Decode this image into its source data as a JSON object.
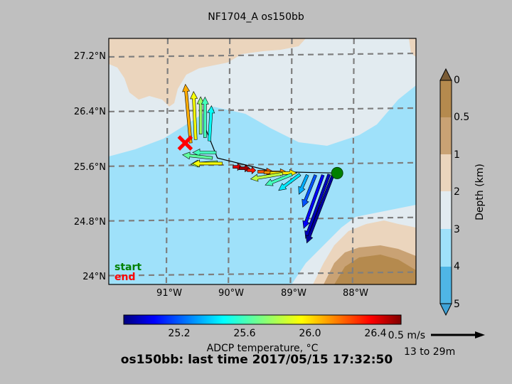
{
  "title": "NF1704_A os150bb",
  "lat_labels": [
    "27.2°N",
    "26.4°N",
    "25.6°N",
    "24.8°N",
    "24°N"
  ],
  "lon_labels": [
    "91°W",
    "90°W",
    "89°W",
    "88°W"
  ],
  "map_extent": {
    "lon": [
      -91.95,
      -87.0
    ],
    "lat": [
      23.85,
      27.45
    ]
  },
  "grid_lon": [
    -91,
    -90,
    -89,
    -88
  ],
  "grid_lat": [
    27.2,
    26.4,
    25.6,
    24.8,
    24.0
  ],
  "legend": {
    "start": "start",
    "end": "end",
    "start_color": "#008000",
    "end_color": "#ff0000"
  },
  "depth_colorbar": {
    "label": "Depth (km)",
    "ticks": [
      "0",
      "0.5",
      "1",
      "2",
      "3",
      "4",
      "5"
    ],
    "colors": [
      "#b58a4e",
      "#c9a274",
      "#ebd5bd",
      "#e2ebf0",
      "#9fe1fa",
      "#4fb6e6"
    ]
  },
  "temp_colorbar": {
    "label": "ADCP temperature, °C",
    "ticks": [
      "25.2",
      "25.6",
      "26.0",
      "26.4"
    ],
    "range": [
      24.85,
      26.55
    ]
  },
  "scale_arrow": {
    "label": "0.5 m/s",
    "depth_label": "13 to 29m"
  },
  "footer": "os150bb: last time 2017/05/15 17:32:50",
  "colors": {
    "deep_water": "#9fe1fa",
    "shelf_water": "#e2ebf0",
    "land": "#ebd5bd",
    "marker_end": "#ff0000",
    "marker_start": "#008000"
  },
  "track": [
    {
      "lon": -90.4,
      "lat": 26.15
    },
    {
      "lon": -90.2,
      "lat": 25.7
    },
    {
      "lon": -89.3,
      "lat": 25.5
    },
    {
      "lon": -88.3,
      "lat": 25.48
    }
  ],
  "start_position": {
    "lon": -88.27,
    "lat": 25.48
  },
  "end_position": {
    "lon": -90.72,
    "lat": 25.92
  },
  "vectors": [
    {
      "lon": -90.63,
      "lat": 25.92,
      "u": -0.05,
      "v": 0.55,
      "t": 26.05
    },
    {
      "lon": -90.55,
      "lat": 25.97,
      "u": -0.02,
      "v": 0.45,
      "t": 25.9
    },
    {
      "lon": -90.47,
      "lat": 26.05,
      "u": 0.0,
      "v": 0.35,
      "t": 25.75
    },
    {
      "lon": -90.4,
      "lat": 26.0,
      "u": 0.0,
      "v": 0.38,
      "t": 25.6
    },
    {
      "lon": -90.33,
      "lat": 25.95,
      "u": 0.02,
      "v": 0.33,
      "t": 25.5
    },
    {
      "lon": -90.22,
      "lat": 25.78,
      "u": -0.22,
      "v": 0.0,
      "t": 25.6
    },
    {
      "lon": -90.28,
      "lat": 25.7,
      "u": -0.28,
      "v": 0.03,
      "t": 25.65
    },
    {
      "lon": -90.2,
      "lat": 25.64,
      "u": -0.25,
      "v": -0.02,
      "t": 25.75
    },
    {
      "lon": -90.12,
      "lat": 25.62,
      "u": -0.28,
      "v": 0.0,
      "t": 25.9
    },
    {
      "lon": -89.95,
      "lat": 25.57,
      "u": 0.08,
      "v": 0.0,
      "t": 26.4
    },
    {
      "lon": -89.85,
      "lat": 25.55,
      "u": 0.1,
      "v": 0.0,
      "t": 26.5
    },
    {
      "lon": -89.72,
      "lat": 25.52,
      "u": 0.08,
      "v": 0.0,
      "t": 26.3
    },
    {
      "lon": -89.55,
      "lat": 25.5,
      "u": 0.15,
      "v": 0.0,
      "t": 26.2
    },
    {
      "lon": -89.45,
      "lat": 25.49,
      "u": 0.22,
      "v": 0.0,
      "t": 26.1
    },
    {
      "lon": -89.35,
      "lat": 25.48,
      "u": 0.25,
      "v": 0.0,
      "t": 25.95
    },
    {
      "lon": -89.15,
      "lat": 25.47,
      "u": -0.3,
      "v": -0.05,
      "t": 25.8
    },
    {
      "lon": -89.0,
      "lat": 25.46,
      "u": -0.25,
      "v": -0.1,
      "t": 25.6
    },
    {
      "lon": -88.87,
      "lat": 25.46,
      "u": -0.2,
      "v": -0.15,
      "t": 25.45
    },
    {
      "lon": -88.75,
      "lat": 25.45,
      "u": -0.08,
      "v": -0.18,
      "t": 25.35
    },
    {
      "lon": -88.62,
      "lat": 25.45,
      "u": -0.12,
      "v": -0.3,
      "t": 25.2
    },
    {
      "lon": -88.5,
      "lat": 25.45,
      "u": -0.18,
      "v": -0.5,
      "t": 25.05
    },
    {
      "lon": -88.4,
      "lat": 25.46,
      "u": -0.22,
      "v": -0.6,
      "t": 24.95
    },
    {
      "lon": -88.33,
      "lat": 25.47,
      "u": -0.25,
      "v": -0.65,
      "t": 24.9
    }
  ]
}
